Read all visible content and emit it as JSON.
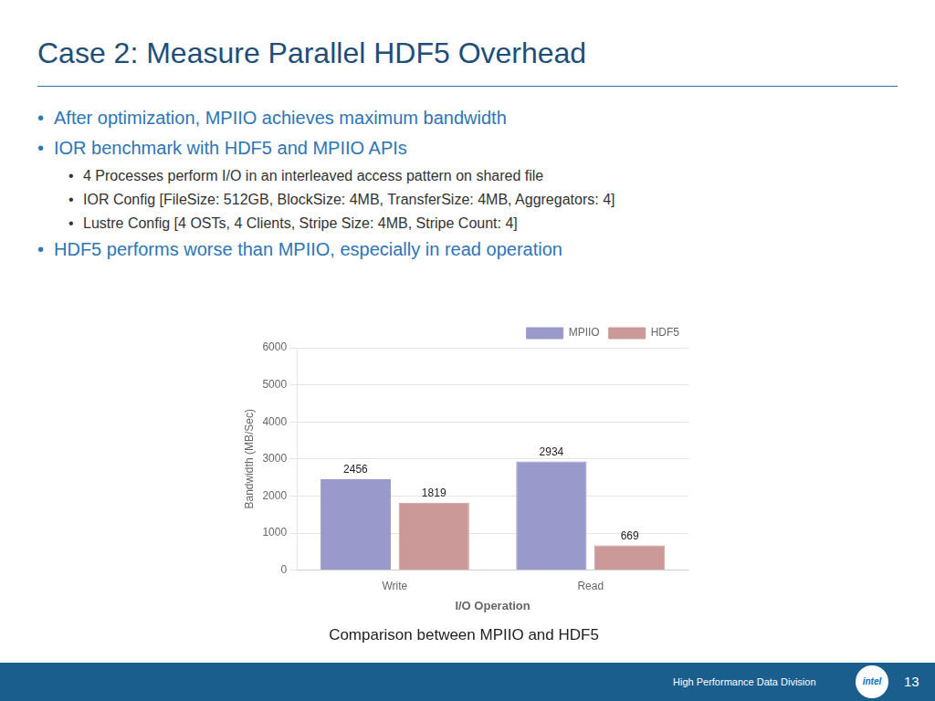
{
  "title": "Case 2: Measure Parallel HDF5 Overhead",
  "annotations": [
    "After optimization, MPIIO achieves maximum bandwidth",
    "IOR benchmark with HDF5 and MPIIO APIs",
    "4 Processes perform I/O in an interleaved access pattern on shared file",
    "IOR Config [FileSize: 512GB, BlockSize: 4MB, TransferSize: 4MB, Aggregators: 4]",
    "Lustre Config [4 OSTs, 4 Clients, Stripe Size: 4MB, Stripe Count: 4]",
    "HDF5 performs worse than MPIIO, especially in read operation",
    "High Performance Data Division",
    "intel",
    "13"
  ],
  "chart_data": {
    "type": "bar",
    "title": "Comparison between MPIIO and HDF5",
    "categories": [
      "Write",
      "Read"
    ],
    "series": [
      {
        "name": "MPIIO",
        "color": "#9999CC",
        "values": [
          2456,
          2934
        ]
      },
      {
        "name": "HDF5",
        "color": "#CC9999",
        "values": [
          1819,
          669
        ]
      }
    ],
    "xlabel": "I/O Operation",
    "ylabel": "Bandwidth (MB/Sec)",
    "ylim": [
      0,
      6000
    ],
    "yticks": [
      0,
      1000,
      2000,
      3000,
      4000,
      5000,
      6000
    ],
    "grid": true,
    "legend": "upper right",
    "data_labels": true
  }
}
